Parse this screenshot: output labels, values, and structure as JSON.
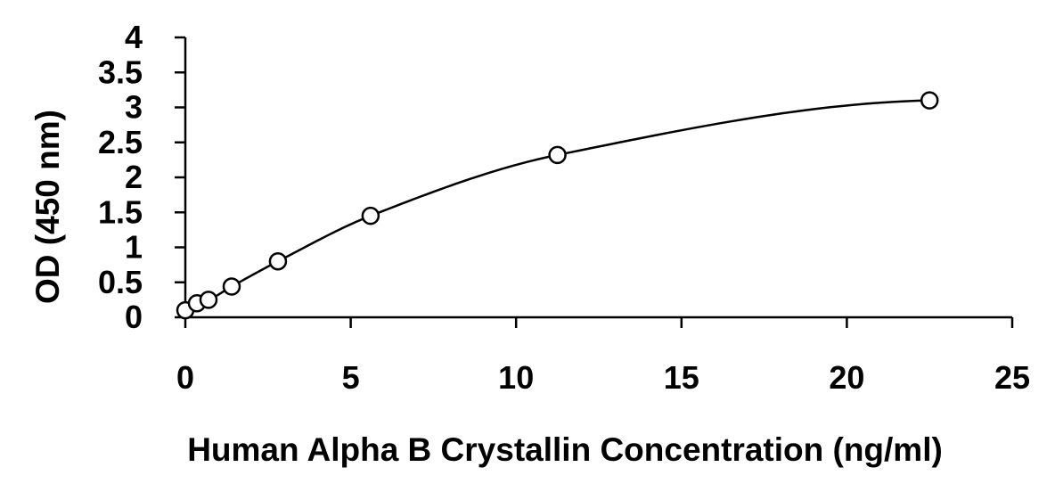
{
  "chart_data": {
    "type": "scatter",
    "xlabel": "Human Alpha B Crystallin Concentration (ng/ml)",
    "ylabel": "OD (450 nm)",
    "xlim": [
      0,
      25
    ],
    "ylim": [
      0,
      4
    ],
    "xticks": [
      0,
      5,
      10,
      15,
      20,
      25
    ],
    "yticks": [
      0,
      0.5,
      1,
      1.5,
      2,
      2.5,
      3,
      3.5,
      4
    ],
    "xtick_labels": [
      "0",
      "5",
      "10",
      "15",
      "20",
      "25"
    ],
    "ytick_labels": [
      "0",
      "0.5",
      "1",
      "1.5",
      "2",
      "2.5",
      "3",
      "3.5",
      "4"
    ],
    "grid": false,
    "legend": "none",
    "marker": "open-circle",
    "fit": "smooth-curve",
    "series": [
      {
        "x": [
          0,
          0.35,
          0.7,
          1.4,
          2.8,
          5.6,
          11.25,
          22.5
        ],
        "y": [
          0.1,
          0.2,
          0.25,
          0.44,
          0.8,
          1.45,
          2.32,
          3.1
        ]
      }
    ],
    "colors": {
      "line": "#000000",
      "marker_stroke": "#000000",
      "marker_fill": "#ffffff"
    }
  }
}
